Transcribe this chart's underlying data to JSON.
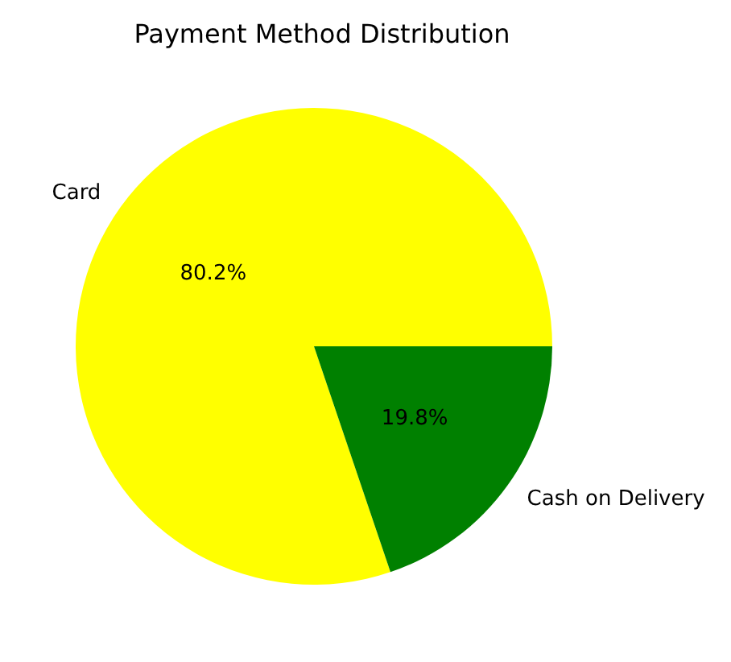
{
  "chart_data": {
    "type": "pie",
    "title": "Payment Method Distribution",
    "categories": [
      "Card",
      "Cash on Delivery"
    ],
    "values": [
      80.2,
      19.8
    ],
    "colors": [
      "#ffff00",
      "#008000"
    ],
    "value_labels": [
      "80.2%",
      "19.8%"
    ]
  }
}
